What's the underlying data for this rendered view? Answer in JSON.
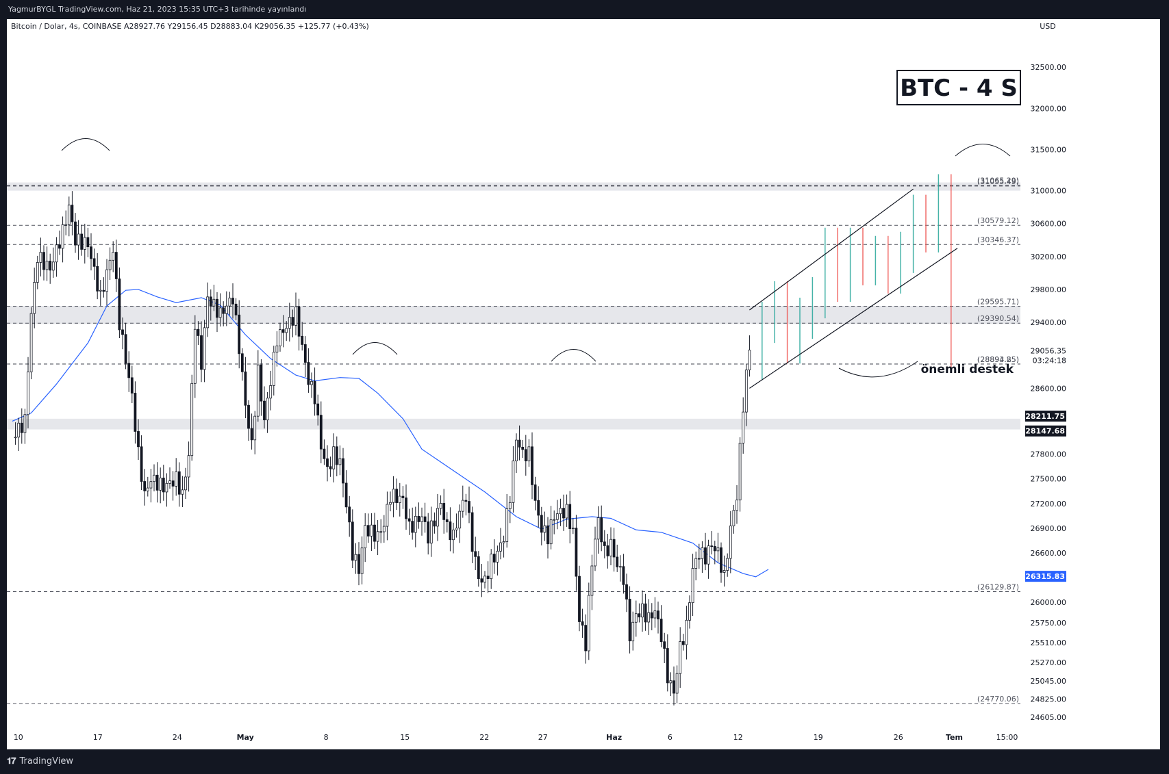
{
  "publish_line": "YagmurBYGL TradingView.com, Haz 21, 2023 15:35 UTC+3 tarihinde yayınlandı",
  "footer": {
    "logo_text": "TradingView"
  },
  "chart_data": {
    "type": "candlestick",
    "header": "Bitcoin / Dolar, 4s, COINBASE  A28927.76  Y29156.45  D28883.04  K29056.35  +125.77 (+0.43%)",
    "currency": "USD",
    "title_box": "BTC - 4 S",
    "annotation": "önemli destek",
    "ylim": [
      24480,
      32900
    ],
    "y_ticks": [
      32500,
      32000,
      31500,
      31000,
      30600,
      30200,
      29800,
      29400,
      28600,
      27800,
      27500,
      27200,
      26900,
      26600,
      26000,
      25750,
      25510,
      25270,
      25045,
      24825,
      24605
    ],
    "x_labels": [
      "10",
      "17",
      "24",
      "May",
      "8",
      "15",
      "22",
      "27",
      "Haz",
      "6",
      "12",
      "19",
      "26",
      "Tem",
      "15:00"
    ],
    "last_price": {
      "value": "29056.35",
      "countdown": "03:24:18",
      "color": "#26a69a"
    },
    "price_tags": [
      {
        "value": "28211.75",
        "color": "#131722"
      },
      {
        "value": "28147.68",
        "color": "#131722"
      },
      {
        "value": "26315.83",
        "color": "#2962ff"
      }
    ],
    "horizontal_levels": [
      "31065.29",
      "31055.49",
      "30579.12",
      "30346.37",
      "29595.71",
      "29390.54",
      "28894.85",
      "28893.25",
      "26129.87",
      "24770.06"
    ],
    "zones": [
      {
        "low": 31000,
        "high": 31100
      },
      {
        "low": 29380,
        "high": 29600
      },
      {
        "low": 28100,
        "high": 28230
      }
    ],
    "moving_average": {
      "color": "#2962ff",
      "points": [
        [
          0,
          28200
        ],
        [
          3,
          28300
        ],
        [
          7,
          28650
        ],
        [
          12,
          29150
        ],
        [
          15,
          29600
        ],
        [
          18,
          29790
        ],
        [
          20,
          29800
        ],
        [
          23,
          29710
        ],
        [
          26,
          29640
        ],
        [
          30,
          29700
        ],
        [
          33,
          29610
        ],
        [
          37,
          29250
        ],
        [
          41,
          28960
        ],
        [
          45,
          28760
        ],
        [
          48,
          28690
        ],
        [
          52,
          28730
        ],
        [
          55,
          28720
        ],
        [
          58,
          28540
        ],
        [
          62,
          28230
        ],
        [
          65,
          27860
        ],
        [
          70,
          27600
        ],
        [
          75,
          27340
        ],
        [
          80,
          27040
        ],
        [
          84,
          26890
        ],
        [
          88,
          27010
        ],
        [
          92,
          27040
        ],
        [
          95,
          27020
        ],
        [
          99,
          26880
        ],
        [
          103,
          26850
        ],
        [
          108,
          26720
        ],
        [
          112,
          26480
        ],
        [
          116,
          26350
        ],
        [
          118,
          26310
        ],
        [
          120,
          26400
        ]
      ]
    },
    "price_path": {
      "points": [
        [
          0,
          28000
        ],
        [
          2,
          28200
        ],
        [
          3,
          29500
        ],
        [
          4,
          30200
        ],
        [
          6,
          30050
        ],
        [
          8,
          30500
        ],
        [
          9,
          30800
        ],
        [
          10,
          30400
        ],
        [
          12,
          30350
        ],
        [
          14,
          29700
        ],
        [
          16,
          30300
        ],
        [
          17,
          29400
        ],
        [
          19,
          28500
        ],
        [
          20,
          27800
        ],
        [
          21,
          27300
        ],
        [
          22,
          27500
        ],
        [
          24,
          27400
        ],
        [
          26,
          27500
        ],
        [
          27,
          27300
        ],
        [
          28,
          27800
        ],
        [
          29,
          29400
        ],
        [
          30,
          28900
        ],
        [
          31,
          29700
        ],
        [
          33,
          29500
        ],
        [
          35,
          29700
        ],
        [
          36,
          29100
        ],
        [
          37,
          28400
        ],
        [
          38,
          27900
        ],
        [
          39,
          28800
        ],
        [
          40,
          28200
        ],
        [
          42,
          29200
        ],
        [
          44,
          29400
        ],
        [
          45,
          29500
        ],
        [
          46,
          29100
        ],
        [
          47,
          28700
        ],
        [
          48,
          28500
        ],
        [
          49,
          27900
        ],
        [
          50,
          27600
        ],
        [
          51,
          27800
        ],
        [
          52,
          27700
        ],
        [
          53,
          27200
        ],
        [
          54,
          26600
        ],
        [
          55,
          26400
        ],
        [
          56,
          26900
        ],
        [
          58,
          26800
        ],
        [
          59,
          26950
        ],
        [
          60,
          27300
        ],
        [
          62,
          27250
        ],
        [
          63,
          26900
        ],
        [
          65,
          27050
        ],
        [
          66,
          26800
        ],
        [
          67,
          27000
        ],
        [
          68,
          27200
        ],
        [
          69,
          26900
        ],
        [
          70,
          26800
        ],
        [
          71,
          27100
        ],
        [
          72,
          27300
        ],
        [
          73,
          26700
        ],
        [
          74,
          26300
        ],
        [
          75,
          26250
        ],
        [
          76,
          26500
        ],
        [
          77,
          26600
        ],
        [
          78,
          26800
        ],
        [
          79,
          27300
        ],
        [
          80,
          28000
        ],
        [
          81,
          27800
        ],
        [
          82,
          27800
        ],
        [
          83,
          27200
        ],
        [
          84,
          26900
        ],
        [
          85,
          26800
        ],
        [
          86,
          27050
        ],
        [
          87,
          27100
        ],
        [
          88,
          27100
        ],
        [
          89,
          26850
        ],
        [
          90,
          25800
        ],
        [
          91,
          25500
        ],
        [
          92,
          26500
        ],
        [
          93,
          27000
        ],
        [
          94,
          26600
        ],
        [
          95,
          26700
        ],
        [
          96,
          26450
        ],
        [
          97,
          26300
        ],
        [
          98,
          25600
        ],
        [
          99,
          25850
        ],
        [
          100,
          25900
        ],
        [
          101,
          25800
        ],
        [
          102,
          25900
        ],
        [
          103,
          25600
        ],
        [
          104,
          25100
        ],
        [
          105,
          24900
        ],
        [
          106,
          25450
        ],
        [
          107,
          25700
        ],
        [
          108,
          26400
        ],
        [
          109,
          26600
        ],
        [
          110,
          26550
        ],
        [
          111,
          26700
        ],
        [
          112,
          26600
        ],
        [
          113,
          26300
        ],
        [
          114,
          26900
        ],
        [
          115,
          27300
        ],
        [
          116,
          28400
        ],
        [
          117,
          29100
        ]
      ]
    },
    "projection": {
      "points": [
        [
          118,
          28950
        ],
        [
          120,
          29400
        ],
        [
          122,
          29650
        ],
        [
          124,
          29150
        ],
        [
          126,
          29450
        ],
        [
          128,
          29700
        ],
        [
          130,
          30300
        ],
        [
          132,
          29900
        ],
        [
          134,
          30300
        ],
        [
          136,
          30100
        ],
        [
          138,
          30200
        ],
        [
          140,
          30000
        ],
        [
          142,
          30250
        ],
        [
          144,
          30700
        ],
        [
          146,
          30500
        ],
        [
          148,
          30950
        ],
        [
          150,
          29050
        ]
      ]
    },
    "channel": {
      "upper": [
        [
          117,
          29550
        ],
        [
          143,
          31020
        ]
      ],
      "lower": [
        [
          117,
          28600
        ],
        [
          150,
          30300
        ]
      ]
    }
  }
}
